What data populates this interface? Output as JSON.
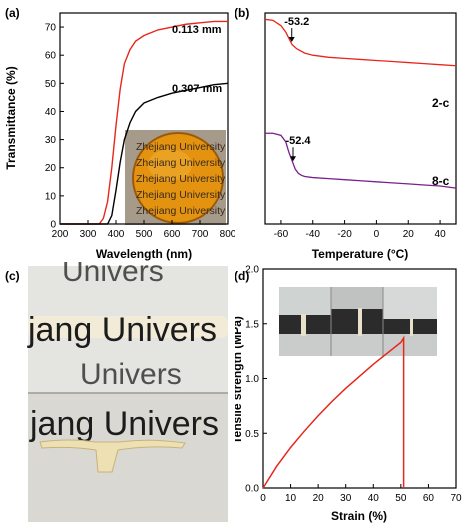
{
  "panels": {
    "a": {
      "label": "(a)"
    },
    "b": {
      "label": "(b)"
    },
    "c": {
      "label": "(c)"
    },
    "d": {
      "label": "(d)"
    }
  },
  "photo_text": {
    "zhejiang": "Zhejiang University",
    "univers": "Univers",
    "jang_univers": "jang Univers"
  },
  "colors": {
    "red": "#e8261c",
    "black": "#000000",
    "purple": "#7a1f8f"
  },
  "chart_data": [
    {
      "id": "a",
      "type": "line",
      "xlabel": "Wavelength (nm)",
      "ylabel": "Transmittance (%)",
      "xlim": [
        200,
        800
      ],
      "ylim": [
        0,
        75
      ],
      "xticks": [
        200,
        300,
        400,
        500,
        600,
        700,
        800
      ],
      "yticks": [
        0,
        10,
        20,
        30,
        40,
        50,
        60,
        70
      ],
      "series": [
        {
          "name": "0.113 mm",
          "color": "#e8261c",
          "x": [
            200,
            340,
            355,
            370,
            385,
            400,
            415,
            430,
            450,
            470,
            500,
            550,
            600,
            650,
            700,
            750,
            800
          ],
          "y": [
            0,
            0,
            2,
            8,
            20,
            35,
            48,
            57,
            62,
            65,
            67,
            69,
            70,
            71,
            71.5,
            72,
            72
          ]
        },
        {
          "name": "0.307 mm",
          "color": "#000000",
          "x": [
            200,
            370,
            385,
            400,
            415,
            430,
            450,
            470,
            500,
            550,
            600,
            650,
            700,
            750,
            800
          ],
          "y": [
            0,
            0,
            3,
            12,
            22,
            30,
            36,
            40,
            43,
            45,
            46.5,
            47.5,
            48.5,
            49.5,
            50
          ]
        }
      ]
    },
    {
      "id": "b",
      "type": "line",
      "xlabel": "Temperature (°C)",
      "ylabel": "",
      "xlim": [
        -70,
        50
      ],
      "xticks": [
        -60,
        -40,
        -20,
        0,
        20,
        40
      ],
      "series": [
        {
          "name": "2-c",
          "color": "#e8261c",
          "x": [
            -70,
            -65,
            -60,
            -57,
            -55,
            -53,
            -50,
            -45,
            -40,
            -30,
            -20,
            -10,
            0,
            10,
            20,
            30,
            40,
            50
          ],
          "y": [
            0.97,
            0.965,
            0.94,
            0.91,
            0.88,
            0.85,
            0.83,
            0.81,
            0.8,
            0.79,
            0.785,
            0.78,
            0.775,
            0.77,
            0.765,
            0.76,
            0.755,
            0.75
          ]
        },
        {
          "name": "8-c",
          "color": "#7a1f8f",
          "x": [
            -70,
            -65,
            -60,
            -57,
            -55,
            -53,
            -51,
            -49,
            -47,
            -45,
            -40,
            -30,
            -20,
            -10,
            0,
            10,
            20,
            30,
            40,
            50
          ],
          "y": [
            0.43,
            0.43,
            0.42,
            0.39,
            0.34,
            0.3,
            0.26,
            0.24,
            0.23,
            0.225,
            0.22,
            0.215,
            0.21,
            0.205,
            0.2,
            0.195,
            0.19,
            0.185,
            0.18,
            0.17
          ]
        }
      ],
      "annotations": [
        {
          "text": "-53.2",
          "x": -53.2,
          "series": "2-c"
        },
        {
          "text": "-52.4",
          "x": -52.4,
          "series": "8-c"
        }
      ]
    },
    {
      "id": "d",
      "type": "line",
      "xlabel": "Strain (%)",
      "ylabel": "Tensile strength (MPa)",
      "xlim": [
        0,
        70
      ],
      "ylim": [
        0,
        2.0
      ],
      "xticks": [
        0,
        10,
        20,
        30,
        40,
        50,
        60,
        70
      ],
      "yticks": [
        0.0,
        0.5,
        1.0,
        1.5,
        2.0
      ],
      "series": [
        {
          "name": "",
          "color": "#e8261c",
          "x": [
            0,
            5,
            10,
            15,
            20,
            25,
            30,
            35,
            40,
            45,
            50,
            51,
            51
          ],
          "y": [
            0,
            0.2,
            0.37,
            0.52,
            0.66,
            0.79,
            0.91,
            1.02,
            1.13,
            1.23,
            1.33,
            1.37,
            0
          ]
        }
      ]
    }
  ]
}
